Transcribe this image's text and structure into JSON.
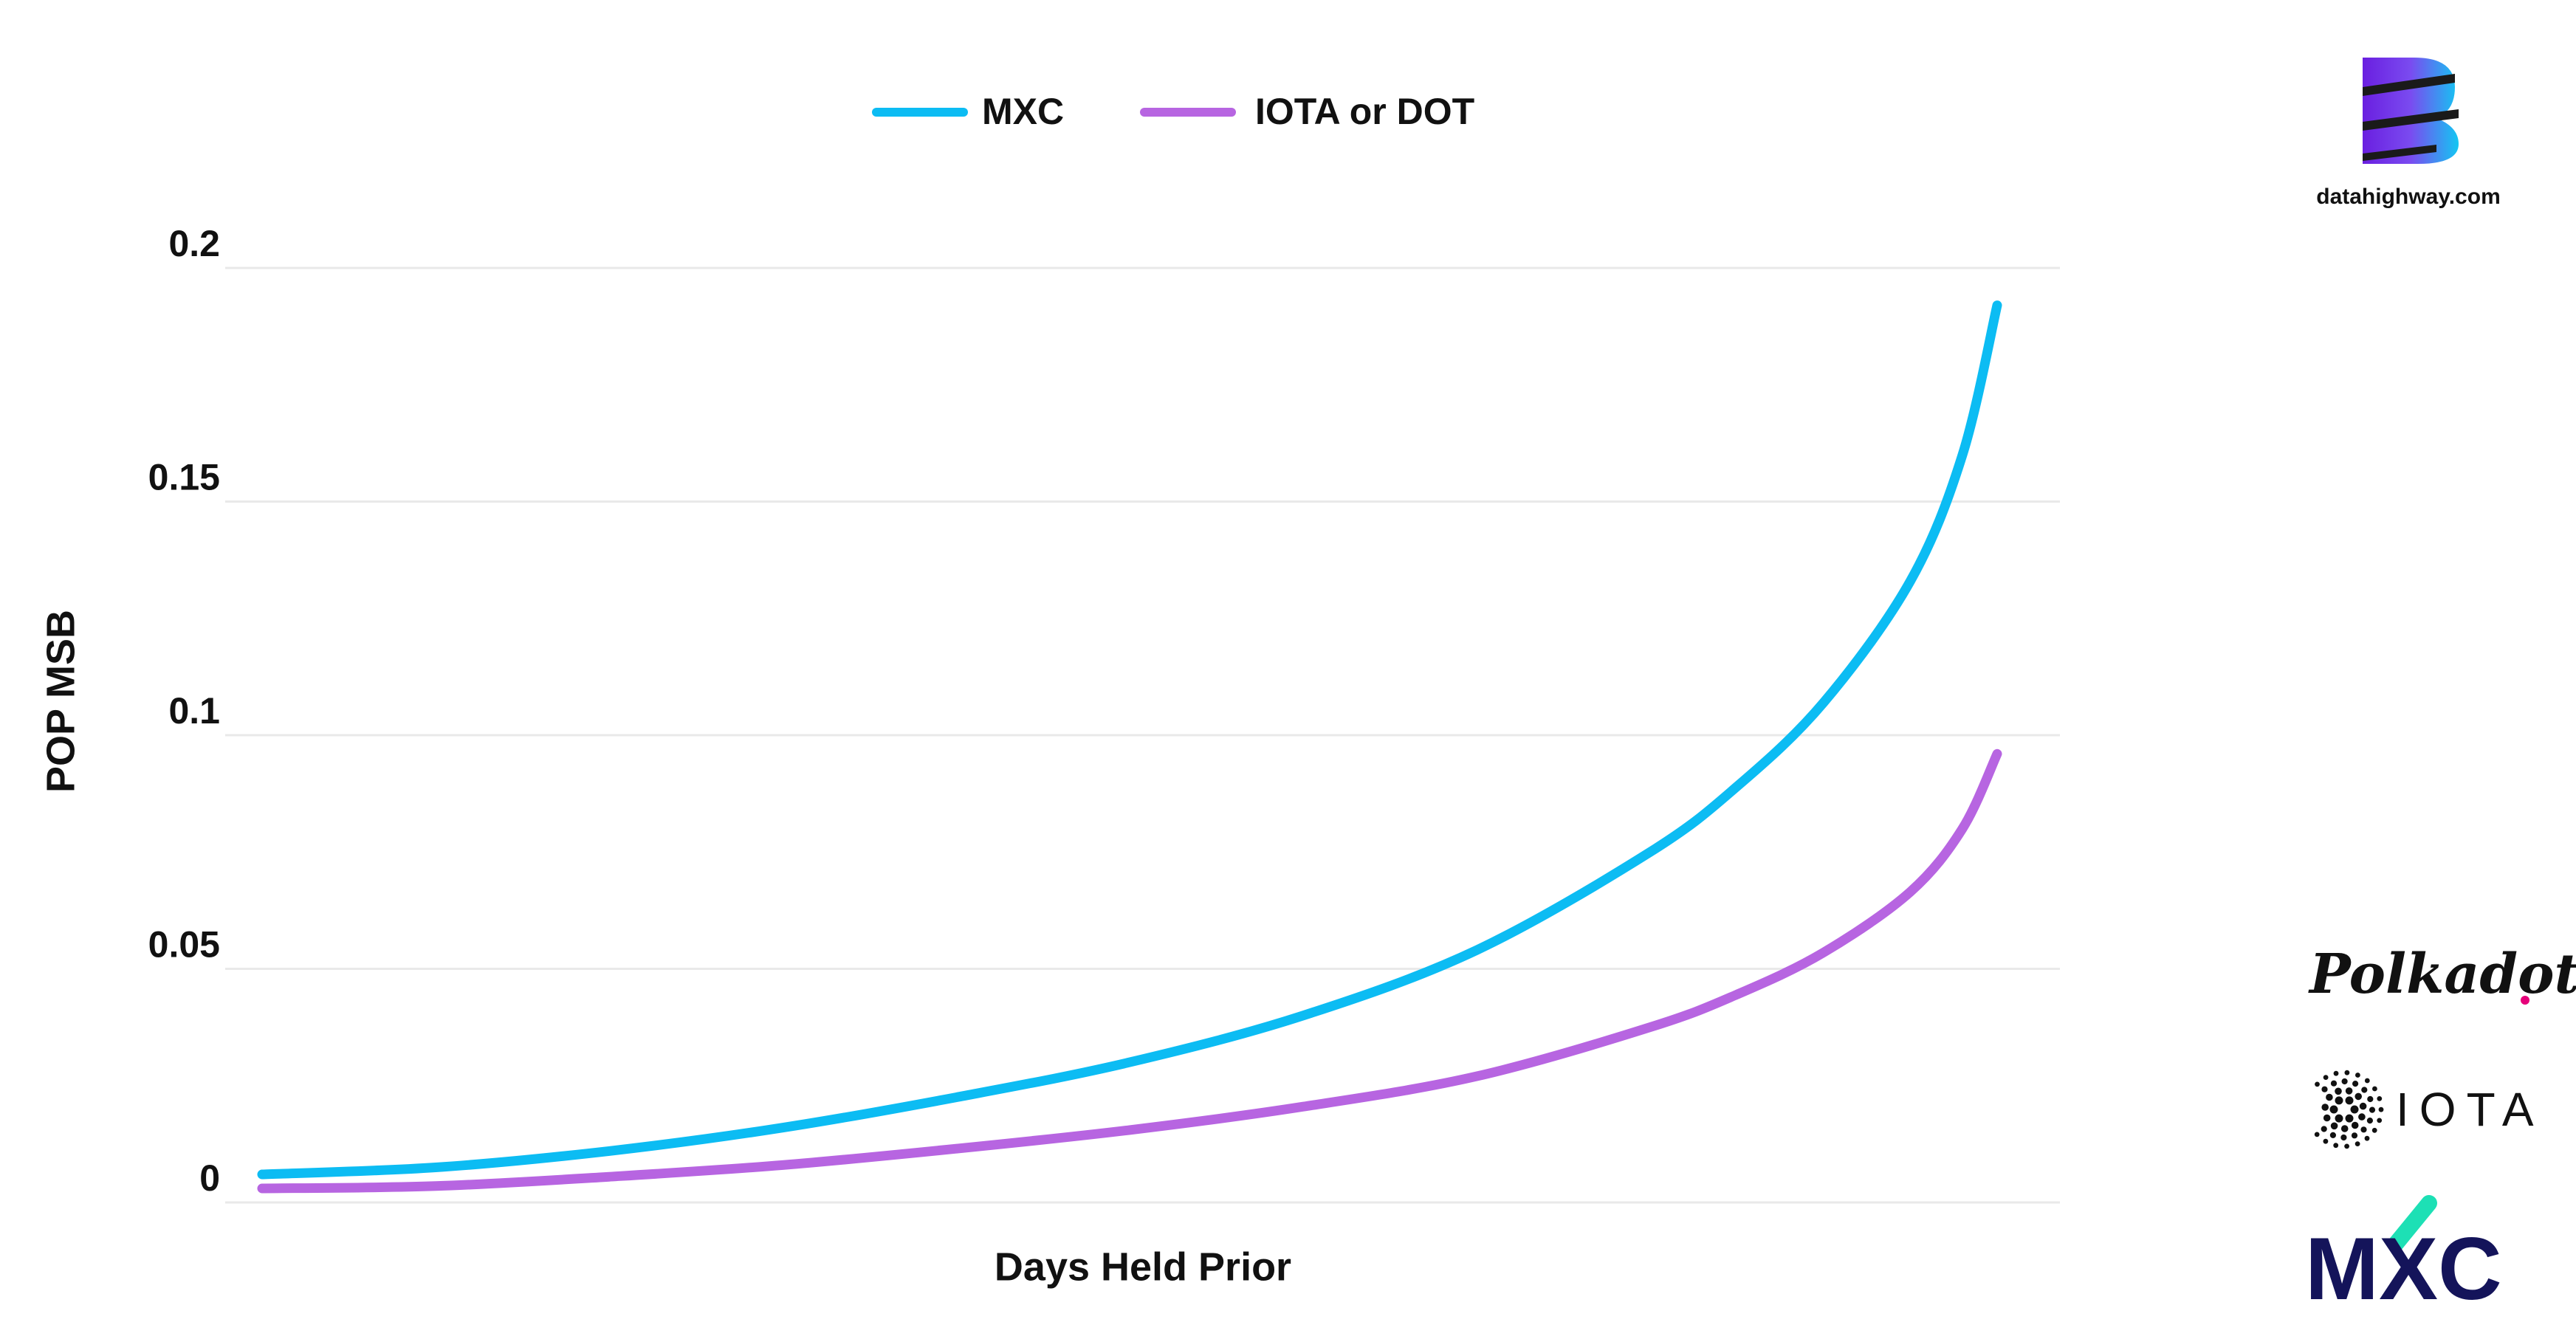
{
  "brand": {
    "site": "datahighway.com",
    "partner_polkadot": "Polkadot",
    "partner_iota": "IOTA",
    "partner_mxc": "MXC"
  },
  "chart_data": {
    "type": "line",
    "title": "",
    "xlabel": "Days Held Prior",
    "ylabel": "POP MSB",
    "ylim": [
      0,
      0.2
    ],
    "yticks": [
      0,
      0.05,
      0.1,
      0.15,
      0.2
    ],
    "ytick_labels": [
      "0",
      "0.05",
      "0.1",
      "0.15",
      "0.2"
    ],
    "x_tick_labels_shown": false,
    "grid": "horizontal",
    "legend_position": "top-center",
    "series": [
      {
        "name": "MXC",
        "color": "#0cbcf3",
        "x": [
          0,
          0.1,
          0.2,
          0.3,
          0.4,
          0.5,
          0.6,
          0.7,
          0.8,
          0.85,
          0.9,
          0.95,
          0.98,
          1.0
        ],
        "values": [
          0.006,
          0.0075,
          0.011,
          0.016,
          0.0225,
          0.03,
          0.04,
          0.054,
          0.075,
          0.089,
          0.107,
          0.133,
          0.16,
          0.192
        ]
      },
      {
        "name": "IOTA or DOT",
        "color": "#b765e1",
        "x": [
          0,
          0.1,
          0.2,
          0.3,
          0.4,
          0.5,
          0.6,
          0.7,
          0.8,
          0.85,
          0.9,
          0.95,
          0.98,
          1.0
        ],
        "values": [
          0.003,
          0.0035,
          0.0055,
          0.008,
          0.0115,
          0.0155,
          0.0205,
          0.027,
          0.0375,
          0.0445,
          0.0535,
          0.0665,
          0.08,
          0.096
        ]
      }
    ]
  }
}
